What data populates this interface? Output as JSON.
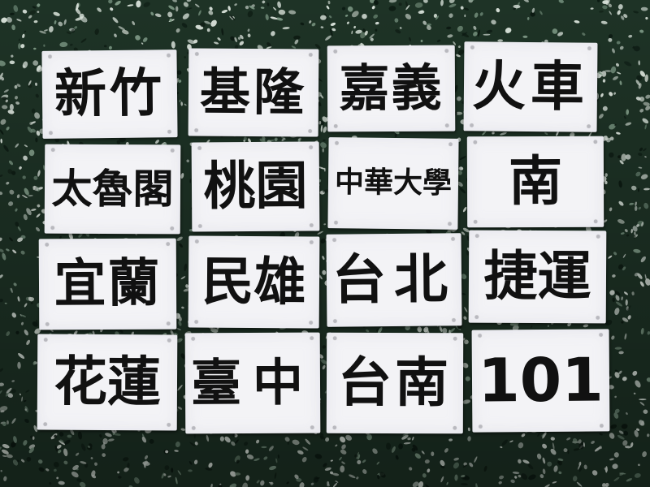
{
  "scene": {
    "floor_colors": {
      "base": "#1e3326",
      "chip_light": "#d9e2da",
      "chip_mid": "#7e9a86",
      "chip_dark": "#0c1a12"
    },
    "paper_color": "#f3f3f6",
    "ink_color": "#111111"
  },
  "signs": [
    {
      "text": "新竹"
    },
    {
      "text": "基隆"
    },
    {
      "text": "嘉義"
    },
    {
      "text": "火車"
    },
    {
      "text": "太魯閣"
    },
    {
      "text": "桃園"
    },
    {
      "text": "中華大學"
    },
    {
      "text": "南"
    },
    {
      "text": "宜蘭"
    },
    {
      "text": "民雄"
    },
    {
      "text": "台北"
    },
    {
      "text": "捷運"
    },
    {
      "text": "花蓮"
    },
    {
      "text": "臺中"
    },
    {
      "text": "台南"
    },
    {
      "text": "101"
    }
  ]
}
